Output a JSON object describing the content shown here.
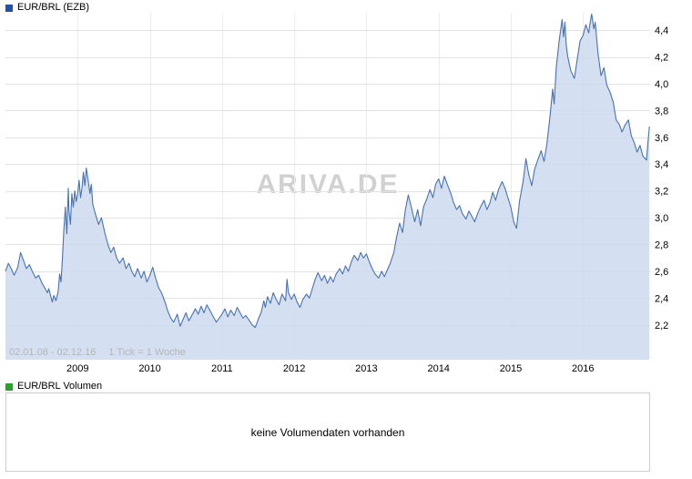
{
  "price_panel": {
    "title": "EUR/BRL (EZB)",
    "swatch_color": "#27519f",
    "watermark": "ARIVA.DE",
    "date_range": "02.01.08 - 02.12.16",
    "tick_info": "1 Tick = 1 Woche"
  },
  "volume_panel": {
    "title": "EUR/BRL Volumen",
    "swatch_color": "#2e9e2e",
    "empty_message": "keine Volumendaten vorhanden"
  },
  "chart_data": {
    "type": "area",
    "title": "EUR/BRL (EZB)",
    "xlabel": "",
    "ylabel": "",
    "grid": true,
    "legend_position": "none",
    "x_ticks": [
      2009,
      2010,
      2011,
      2012,
      2013,
      2014,
      2015,
      2016
    ],
    "x_tick_labels": [
      "2009",
      "2010",
      "2011",
      "2012",
      "2013",
      "2014",
      "2015",
      "2016"
    ],
    "y_ticks": [
      2.2,
      2.4,
      2.6,
      2.8,
      3.0,
      3.2,
      3.4,
      3.6,
      3.8,
      4.0,
      4.2,
      4.4
    ],
    "y_tick_labels": [
      "2,2",
      "2,4",
      "2,6",
      "2,8",
      "3,0",
      "3,2",
      "3,4",
      "3,6",
      "3,8",
      "4,0",
      "4,2",
      "4,4"
    ],
    "xlim": [
      2008.0,
      2016.93
    ],
    "ylim": [
      1.94,
      4.53
    ],
    "colors": {
      "line": "#4a72ae",
      "fill": "#ccd9ee",
      "grid_h": "#e3e3e3",
      "grid_v": "#ededed",
      "axis_text": "#000000"
    },
    "series": [
      {
        "name": "EUR/BRL",
        "x_unit": "decimal_year",
        "points": [
          [
            2008.0,
            2.6
          ],
          [
            2008.04,
            2.66
          ],
          [
            2008.08,
            2.62
          ],
          [
            2008.12,
            2.57
          ],
          [
            2008.17,
            2.63
          ],
          [
            2008.21,
            2.74
          ],
          [
            2008.25,
            2.68
          ],
          [
            2008.29,
            2.62
          ],
          [
            2008.33,
            2.65
          ],
          [
            2008.38,
            2.59
          ],
          [
            2008.42,
            2.55
          ],
          [
            2008.46,
            2.57
          ],
          [
            2008.5,
            2.52
          ],
          [
            2008.54,
            2.48
          ],
          [
            2008.58,
            2.44
          ],
          [
            2008.6,
            2.47
          ],
          [
            2008.63,
            2.41
          ],
          [
            2008.65,
            2.37
          ],
          [
            2008.67,
            2.42
          ],
          [
            2008.7,
            2.38
          ],
          [
            2008.73,
            2.45
          ],
          [
            2008.75,
            2.58
          ],
          [
            2008.77,
            2.52
          ],
          [
            2008.79,
            2.7
          ],
          [
            2008.81,
            2.92
          ],
          [
            2008.83,
            3.08
          ],
          [
            2008.85,
            2.88
          ],
          [
            2008.87,
            3.22
          ],
          [
            2008.88,
            3.05
          ],
          [
            2008.9,
            2.95
          ],
          [
            2008.92,
            3.18
          ],
          [
            2008.94,
            3.08
          ],
          [
            2008.96,
            3.2
          ],
          [
            2008.98,
            3.12
          ],
          [
            2009.0,
            3.18
          ],
          [
            2009.02,
            3.28
          ],
          [
            2009.04,
            3.15
          ],
          [
            2009.06,
            3.22
          ],
          [
            2009.08,
            3.34
          ],
          [
            2009.1,
            3.24
          ],
          [
            2009.12,
            3.37
          ],
          [
            2009.15,
            3.26
          ],
          [
            2009.17,
            3.18
          ],
          [
            2009.19,
            3.25
          ],
          [
            2009.21,
            3.1
          ],
          [
            2009.25,
            3.02
          ],
          [
            2009.29,
            2.95
          ],
          [
            2009.33,
            3.0
          ],
          [
            2009.38,
            2.88
          ],
          [
            2009.42,
            2.8
          ],
          [
            2009.46,
            2.74
          ],
          [
            2009.5,
            2.78
          ],
          [
            2009.54,
            2.7
          ],
          [
            2009.58,
            2.66
          ],
          [
            2009.63,
            2.7
          ],
          [
            2009.67,
            2.62
          ],
          [
            2009.71,
            2.66
          ],
          [
            2009.75,
            2.6
          ],
          [
            2009.79,
            2.56
          ],
          [
            2009.83,
            2.62
          ],
          [
            2009.88,
            2.55
          ],
          [
            2009.92,
            2.6
          ],
          [
            2009.96,
            2.52
          ],
          [
            2010.0,
            2.57
          ],
          [
            2010.04,
            2.63
          ],
          [
            2010.08,
            2.55
          ],
          [
            2010.12,
            2.48
          ],
          [
            2010.17,
            2.43
          ],
          [
            2010.21,
            2.37
          ],
          [
            2010.25,
            2.3
          ],
          [
            2010.29,
            2.25
          ],
          [
            2010.33,
            2.22
          ],
          [
            2010.38,
            2.28
          ],
          [
            2010.42,
            2.19
          ],
          [
            2010.46,
            2.24
          ],
          [
            2010.5,
            2.29
          ],
          [
            2010.54,
            2.23
          ],
          [
            2010.58,
            2.27
          ],
          [
            2010.63,
            2.32
          ],
          [
            2010.67,
            2.28
          ],
          [
            2010.71,
            2.34
          ],
          [
            2010.75,
            2.29
          ],
          [
            2010.79,
            2.35
          ],
          [
            2010.83,
            2.31
          ],
          [
            2010.88,
            2.26
          ],
          [
            2010.92,
            2.22
          ],
          [
            2010.96,
            2.25
          ],
          [
            2011.0,
            2.28
          ],
          [
            2011.04,
            2.32
          ],
          [
            2011.08,
            2.26
          ],
          [
            2011.12,
            2.31
          ],
          [
            2011.17,
            2.27
          ],
          [
            2011.21,
            2.33
          ],
          [
            2011.25,
            2.29
          ],
          [
            2011.29,
            2.25
          ],
          [
            2011.33,
            2.27
          ],
          [
            2011.38,
            2.23
          ],
          [
            2011.42,
            2.2
          ],
          [
            2011.46,
            2.18
          ],
          [
            2011.5,
            2.24
          ],
          [
            2011.54,
            2.29
          ],
          [
            2011.58,
            2.38
          ],
          [
            2011.6,
            2.33
          ],
          [
            2011.63,
            2.41
          ],
          [
            2011.67,
            2.36
          ],
          [
            2011.71,
            2.44
          ],
          [
            2011.75,
            2.39
          ],
          [
            2011.79,
            2.35
          ],
          [
            2011.83,
            2.43
          ],
          [
            2011.88,
            2.38
          ],
          [
            2011.9,
            2.54
          ],
          [
            2011.92,
            2.44
          ],
          [
            2011.96,
            2.39
          ],
          [
            2012.0,
            2.43
          ],
          [
            2012.04,
            2.37
          ],
          [
            2012.08,
            2.33
          ],
          [
            2012.12,
            2.39
          ],
          [
            2012.17,
            2.43
          ],
          [
            2012.21,
            2.4
          ],
          [
            2012.25,
            2.47
          ],
          [
            2012.29,
            2.54
          ],
          [
            2012.33,
            2.59
          ],
          [
            2012.38,
            2.53
          ],
          [
            2012.42,
            2.57
          ],
          [
            2012.46,
            2.51
          ],
          [
            2012.5,
            2.56
          ],
          [
            2012.54,
            2.52
          ],
          [
            2012.58,
            2.58
          ],
          [
            2012.63,
            2.62
          ],
          [
            2012.67,
            2.58
          ],
          [
            2012.71,
            2.64
          ],
          [
            2012.75,
            2.6
          ],
          [
            2012.79,
            2.67
          ],
          [
            2012.83,
            2.72
          ],
          [
            2012.88,
            2.68
          ],
          [
            2012.92,
            2.74
          ],
          [
            2012.96,
            2.7
          ],
          [
            2013.0,
            2.73
          ],
          [
            2013.04,
            2.67
          ],
          [
            2013.08,
            2.62
          ],
          [
            2013.12,
            2.58
          ],
          [
            2013.17,
            2.55
          ],
          [
            2013.21,
            2.6
          ],
          [
            2013.25,
            2.56
          ],
          [
            2013.29,
            2.61
          ],
          [
            2013.33,
            2.66
          ],
          [
            2013.38,
            2.74
          ],
          [
            2013.42,
            2.86
          ],
          [
            2013.46,
            2.96
          ],
          [
            2013.5,
            2.89
          ],
          [
            2013.54,
            3.06
          ],
          [
            2013.58,
            3.17
          ],
          [
            2013.63,
            3.06
          ],
          [
            2013.67,
            2.97
          ],
          [
            2013.71,
            3.06
          ],
          [
            2013.75,
            2.94
          ],
          [
            2013.79,
            3.08
          ],
          [
            2013.83,
            3.13
          ],
          [
            2013.88,
            3.21
          ],
          [
            2013.92,
            3.15
          ],
          [
            2013.96,
            3.25
          ],
          [
            2014.0,
            3.29
          ],
          [
            2014.04,
            3.22
          ],
          [
            2014.08,
            3.31
          ],
          [
            2014.12,
            3.25
          ],
          [
            2014.17,
            3.18
          ],
          [
            2014.21,
            3.11
          ],
          [
            2014.25,
            3.06
          ],
          [
            2014.29,
            3.09
          ],
          [
            2014.33,
            3.03
          ],
          [
            2014.38,
            2.99
          ],
          [
            2014.42,
            3.05
          ],
          [
            2014.46,
            3.01
          ],
          [
            2014.5,
            2.97
          ],
          [
            2014.54,
            3.03
          ],
          [
            2014.58,
            3.08
          ],
          [
            2014.63,
            3.13
          ],
          [
            2014.67,
            3.06
          ],
          [
            2014.71,
            3.11
          ],
          [
            2014.75,
            3.19
          ],
          [
            2014.79,
            3.13
          ],
          [
            2014.83,
            3.21
          ],
          [
            2014.88,
            3.27
          ],
          [
            2014.92,
            3.22
          ],
          [
            2014.96,
            3.15
          ],
          [
            2015.0,
            3.08
          ],
          [
            2015.04,
            2.97
          ],
          [
            2015.08,
            2.92
          ],
          [
            2015.12,
            3.12
          ],
          [
            2015.17,
            3.27
          ],
          [
            2015.21,
            3.44
          ],
          [
            2015.25,
            3.32
          ],
          [
            2015.29,
            3.24
          ],
          [
            2015.33,
            3.36
          ],
          [
            2015.38,
            3.44
          ],
          [
            2015.42,
            3.5
          ],
          [
            2015.46,
            3.42
          ],
          [
            2015.5,
            3.55
          ],
          [
            2015.54,
            3.74
          ],
          [
            2015.58,
            3.96
          ],
          [
            2015.6,
            3.85
          ],
          [
            2015.63,
            4.12
          ],
          [
            2015.67,
            4.32
          ],
          [
            2015.71,
            4.48
          ],
          [
            2015.73,
            4.35
          ],
          [
            2015.75,
            4.46
          ],
          [
            2015.77,
            4.28
          ],
          [
            2015.79,
            4.2
          ],
          [
            2015.83,
            4.1
          ],
          [
            2015.88,
            4.04
          ],
          [
            2015.92,
            4.18
          ],
          [
            2015.96,
            4.32
          ],
          [
            2016.0,
            4.36
          ],
          [
            2016.04,
            4.44
          ],
          [
            2016.08,
            4.38
          ],
          [
            2016.1,
            4.46
          ],
          [
            2016.12,
            4.52
          ],
          [
            2016.15,
            4.41
          ],
          [
            2016.17,
            4.46
          ],
          [
            2016.21,
            4.22
          ],
          [
            2016.25,
            4.06
          ],
          [
            2016.29,
            4.12
          ],
          [
            2016.33,
            3.99
          ],
          [
            2016.38,
            3.93
          ],
          [
            2016.42,
            3.86
          ],
          [
            2016.46,
            3.73
          ],
          [
            2016.5,
            3.7
          ],
          [
            2016.54,
            3.64
          ],
          [
            2016.58,
            3.69
          ],
          [
            2016.63,
            3.73
          ],
          [
            2016.67,
            3.61
          ],
          [
            2016.71,
            3.56
          ],
          [
            2016.75,
            3.49
          ],
          [
            2016.79,
            3.54
          ],
          [
            2016.83,
            3.46
          ],
          [
            2016.88,
            3.43
          ],
          [
            2016.9,
            3.56
          ],
          [
            2016.92,
            3.68
          ]
        ]
      }
    ]
  }
}
